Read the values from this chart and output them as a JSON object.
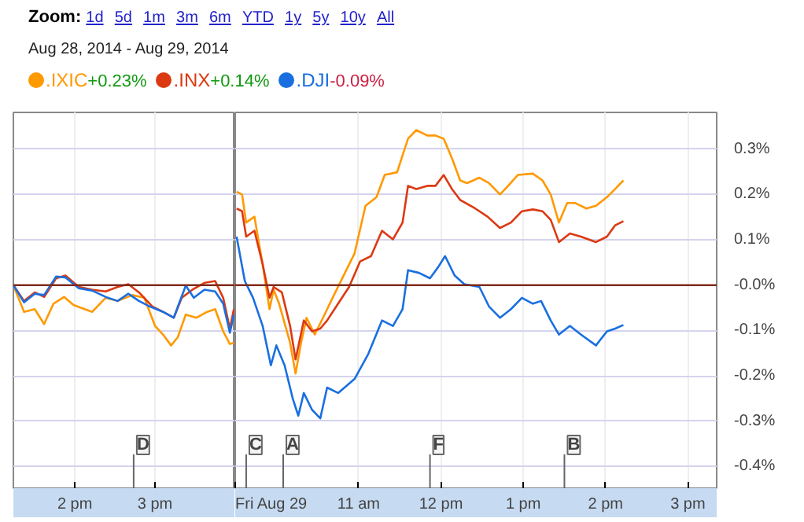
{
  "chart_data": [
    {
      "type": "line",
      "title": "Zoom:",
      "subtitle": "Aug 28, 2014  -  Aug 29, 2014",
      "annotations": [
        "1d",
        "5d",
        "1m",
        "3m",
        "6m",
        "YTD",
        "1y",
        "5y",
        "10y",
        "All",
        "+0.23%",
        "+0.14%",
        "-0.09%"
      ],
      "legend": "top",
      "grid": true,
      "tick_labels": "x",
      "xlim": [
        "2014-08-28T13:14",
        "2014-08-28T16:00"
      ],
      "ylim": [
        -0.448,
        0.381
      ],
      "xticks": [
        {
          "value": "2014-08-28T14:00",
          "label": "2 pm"
        },
        {
          "value": "2014-08-28T15:00",
          "label": "3 pm"
        }
      ],
      "yticks": [
        {
          "value": 0.3,
          "label": null
        },
        {
          "value": 0.2,
          "label": null
        },
        {
          "value": 0.1,
          "label": null
        },
        {
          "value": 0,
          "label": null
        },
        {
          "value": -0.1,
          "label": null
        },
        {
          "value": -0.2,
          "label": null
        },
        {
          "value": -0.3,
          "label": null
        },
        {
          "value": -0.4,
          "label": null
        }
      ],
      "ref_lines": [
        {
          "axis": "y",
          "value": 0,
          "label": null,
          "color": "#7f2a1a"
        },
        {
          "axis": "x",
          "value": "2014-08-28T14:44",
          "label": "D",
          "color": "#666666"
        }
      ],
      "series": [
        {
          "name": ".IXIC",
          "color": "#ff9900",
          "x": [
            "2014-08-28T13:14",
            "2014-08-28T13:22",
            "2014-08-28T13:30",
            "2014-08-28T13:37",
            "2014-08-28T13:44",
            "2014-08-28T13:52",
            "2014-08-28T13:59",
            "2014-08-28T14:13",
            "2014-08-28T14:23",
            "2014-08-28T14:32",
            "2014-08-28T14:43",
            "2014-08-28T14:52",
            "2014-08-28T15:00",
            "2014-08-28T15:06",
            "2014-08-28T15:12",
            "2014-08-28T15:17",
            "2014-08-28T15:23",
            "2014-08-28T15:31",
            "2014-08-28T15:39",
            "2014-08-28T15:45",
            "2014-08-28T15:51",
            "2014-08-28T15:56",
            "2014-08-28T15:59"
          ],
          "values": [
            0.0,
            -0.059,
            -0.053,
            -0.086,
            -0.041,
            -0.026,
            -0.044,
            -0.059,
            -0.028,
            -0.035,
            -0.022,
            -0.028,
            -0.09,
            -0.109,
            -0.133,
            -0.115,
            -0.065,
            -0.072,
            -0.059,
            -0.053,
            -0.102,
            -0.13,
            -0.127
          ]
        },
        {
          "name": ".INX",
          "color": "#dc3912",
          "x": [
            "2014-08-28T13:14",
            "2014-08-28T13:22",
            "2014-08-28T13:30",
            "2014-08-28T13:37",
            "2014-08-28T13:46",
            "2014-08-28T13:53",
            "2014-08-28T14:03",
            "2014-08-28T14:13",
            "2014-08-28T14:23",
            "2014-08-28T14:32",
            "2014-08-28T14:40",
            "2014-08-28T14:48",
            "2014-08-28T14:58",
            "2014-08-28T15:06",
            "2014-08-28T15:14",
            "2014-08-28T15:20",
            "2014-08-28T15:28",
            "2014-08-28T15:37",
            "2014-08-28T15:45",
            "2014-08-28T15:51",
            "2014-08-28T15:56",
            "2014-08-28T15:59"
          ],
          "values": [
            0.0,
            -0.035,
            -0.016,
            -0.026,
            0.015,
            0.021,
            -0.004,
            -0.01,
            -0.014,
            -0.004,
            0.002,
            -0.016,
            -0.047,
            -0.059,
            -0.072,
            -0.028,
            -0.01,
            0.005,
            0.009,
            -0.028,
            -0.096,
            -0.053
          ]
        },
        {
          "name": ".DJI",
          "color": "#1a6fe0",
          "x": [
            "2014-08-28T13:14",
            "2014-08-28T13:22",
            "2014-08-28T13:30",
            "2014-08-28T13:37",
            "2014-08-28T13:46",
            "2014-08-28T13:53",
            "2014-08-28T14:03",
            "2014-08-28T14:13",
            "2014-08-28T14:23",
            "2014-08-28T14:32",
            "2014-08-28T14:40",
            "2014-08-28T14:48",
            "2014-08-28T14:56",
            "2014-08-28T15:06",
            "2014-08-28T15:14",
            "2014-08-28T15:23",
            "2014-08-28T15:29",
            "2014-08-28T15:37",
            "2014-08-28T15:45",
            "2014-08-28T15:51",
            "2014-08-28T15:56",
            "2014-08-28T15:59"
          ],
          "values": [
            0.0,
            -0.038,
            -0.019,
            -0.022,
            0.019,
            0.017,
            -0.007,
            -0.012,
            -0.026,
            -0.035,
            -0.019,
            -0.035,
            -0.047,
            -0.059,
            -0.072,
            -0.001,
            -0.028,
            -0.01,
            -0.014,
            -0.041,
            -0.105,
            -0.065
          ]
        }
      ]
    },
    {
      "type": "line",
      "grid": true,
      "xlim": [
        "2014-08-29T09:30",
        "2014-08-29T15:21"
      ],
      "ylim": [
        -0.448,
        0.381
      ],
      "xticks": [
        {
          "value": "2014-08-29T09:30",
          "label": "Fri Aug 29"
        },
        {
          "value": "2014-08-29T11:00",
          "label": "11 am"
        },
        {
          "value": "2014-08-29T12:00",
          "label": "12 pm"
        },
        {
          "value": "2014-08-29T13:00",
          "label": "1 pm"
        },
        {
          "value": "2014-08-29T14:00",
          "label": "2 pm"
        },
        {
          "value": "2014-08-29T15:00",
          "label": "3 pm"
        }
      ],
      "yticks": [
        {
          "value": 0.3,
          "label": "0.3%"
        },
        {
          "value": 0.2,
          "label": "0.2%"
        },
        {
          "value": 0.1,
          "label": "0.1%"
        },
        {
          "value": 0,
          "label": "-0.0%"
        },
        {
          "value": -0.1,
          "label": "-0.1%"
        },
        {
          "value": -0.2,
          "label": "-0.2%"
        },
        {
          "value": -0.3,
          "label": "-0.3%"
        },
        {
          "value": -0.4,
          "label": "-0.4%"
        }
      ],
      "ref_lines": [
        {
          "axis": "y",
          "value": 0,
          "label": null,
          "color": "#7f2a1a"
        },
        {
          "axis": "x",
          "value": "2014-08-29T09:38",
          "label": "C",
          "color": "#666666"
        },
        {
          "axis": "x",
          "value": "2014-08-29T10:05",
          "label": "A",
          "color": "#666666"
        },
        {
          "axis": "x",
          "value": "2014-08-29T11:52",
          "label": "F",
          "color": "#666666"
        },
        {
          "axis": "x",
          "value": "2014-08-29T13:30",
          "label": "B",
          "color": "#666666"
        }
      ],
      "series": [
        {
          "color": "#ff9900",
          "x": [
            "2014-08-29T09:31",
            "2014-08-29T09:35",
            "2014-08-29T09:38",
            "2014-08-29T09:44",
            "2014-08-29T09:50",
            "2014-08-29T09:55",
            "2014-08-29T09:58",
            "2014-08-29T10:02",
            "2014-08-29T10:10",
            "2014-08-29T10:14",
            "2014-08-29T10:18",
            "2014-08-29T10:22",
            "2014-08-29T10:28",
            "2014-08-29T10:34",
            "2014-08-29T10:41",
            "2014-08-29T10:49",
            "2014-08-29T10:57",
            "2014-08-29T11:05",
            "2014-08-29T11:13",
            "2014-08-29T11:19",
            "2014-08-29T11:28",
            "2014-08-29T11:36",
            "2014-08-29T11:42",
            "2014-08-29T11:50",
            "2014-08-29T11:56",
            "2014-08-29T12:02",
            "2014-08-29T12:08",
            "2014-08-29T12:14",
            "2014-08-29T12:19",
            "2014-08-29T12:28",
            "2014-08-29T12:35",
            "2014-08-29T12:43",
            "2014-08-29T12:49",
            "2014-08-29T12:56",
            "2014-08-29T13:07",
            "2014-08-29T13:14",
            "2014-08-29T13:20",
            "2014-08-29T13:26",
            "2014-08-29T13:32",
            "2014-08-29T13:38",
            "2014-08-29T13:46",
            "2014-08-29T13:53",
            "2014-08-29T14:01",
            "2014-08-29T14:07",
            "2014-08-29T14:13"
          ],
          "values": [
            0.206,
            0.2,
            0.138,
            0.151,
            0.046,
            -0.053,
            -0.01,
            -0.041,
            -0.127,
            -0.195,
            -0.127,
            -0.072,
            -0.109,
            -0.072,
            -0.028,
            0.021,
            0.07,
            0.175,
            0.194,
            0.243,
            0.249,
            0.323,
            0.342,
            0.33,
            0.33,
            0.323,
            0.28,
            0.231,
            0.225,
            0.237,
            0.225,
            0.2,
            0.219,
            0.243,
            0.246,
            0.231,
            0.2,
            0.138,
            0.181,
            0.181,
            0.169,
            0.175,
            0.194,
            0.212,
            0.231
          ]
        },
        {
          "color": "#dc3912",
          "x": [
            "2014-08-29T09:31",
            "2014-08-29T09:35",
            "2014-08-29T09:38",
            "2014-08-29T09:44",
            "2014-08-29T09:50",
            "2014-08-29T09:55",
            "2014-08-29T09:58",
            "2014-08-29T10:04",
            "2014-08-29T10:10",
            "2014-08-29T10:14",
            "2014-08-29T10:20",
            "2014-08-29T10:26",
            "2014-08-29T10:32",
            "2014-08-29T10:37",
            "2014-08-29T10:45",
            "2014-08-29T10:53",
            "2014-08-29T11:01",
            "2014-08-29T11:09",
            "2014-08-29T11:17",
            "2014-08-29T11:25",
            "2014-08-29T11:32",
            "2014-08-29T11:36",
            "2014-08-29T11:42",
            "2014-08-29T11:50",
            "2014-08-29T11:56",
            "2014-08-29T12:02",
            "2014-08-29T12:08",
            "2014-08-29T12:14",
            "2014-08-29T12:25",
            "2014-08-29T12:34",
            "2014-08-29T12:43",
            "2014-08-29T12:51",
            "2014-08-29T12:59",
            "2014-08-29T13:07",
            "2014-08-29T13:14",
            "2014-08-29T13:20",
            "2014-08-29T13:26",
            "2014-08-29T13:34",
            "2014-08-29T13:42",
            "2014-08-29T13:53",
            "2014-08-29T14:01",
            "2014-08-29T14:07",
            "2014-08-29T14:13"
          ],
          "values": [
            0.169,
            0.163,
            0.107,
            0.12,
            0.046,
            -0.028,
            -0.004,
            -0.016,
            -0.09,
            -0.164,
            -0.078,
            -0.102,
            -0.096,
            -0.078,
            -0.041,
            -0.004,
            0.052,
            0.064,
            0.12,
            0.101,
            0.138,
            0.219,
            0.212,
            0.219,
            0.219,
            0.243,
            0.212,
            0.188,
            0.169,
            0.151,
            0.126,
            0.138,
            0.163,
            0.167,
            0.163,
            0.144,
            0.095,
            0.114,
            0.107,
            0.095,
            0.107,
            0.132,
            0.141
          ]
        },
        {
          "color": "#1a6fe0",
          "x": [
            "2014-08-29T09:31",
            "2014-08-29T09:37",
            "2014-08-29T09:43",
            "2014-08-29T09:50",
            "2014-08-29T09:56",
            "2014-08-29T10:00",
            "2014-08-29T10:06",
            "2014-08-29T10:12",
            "2014-08-29T10:16",
            "2014-08-29T10:20",
            "2014-08-29T10:26",
            "2014-08-29T10:32",
            "2014-08-29T10:37",
            "2014-08-29T10:45",
            "2014-08-29T10:57",
            "2014-08-29T11:07",
            "2014-08-29T11:17",
            "2014-08-29T11:25",
            "2014-08-29T11:32",
            "2014-08-29T11:36",
            "2014-08-29T11:44",
            "2014-08-29T11:52",
            "2014-08-29T11:58",
            "2014-08-29T12:03",
            "2014-08-29T12:10",
            "2014-08-29T12:17",
            "2014-08-29T12:28",
            "2014-08-29T12:35",
            "2014-08-29T12:43",
            "2014-08-29T12:51",
            "2014-08-29T12:59",
            "2014-08-29T13:07",
            "2014-08-29T13:13",
            "2014-08-29T13:20",
            "2014-08-29T13:26",
            "2014-08-29T13:34",
            "2014-08-29T13:42",
            "2014-08-29T13:53",
            "2014-08-29T14:01",
            "2014-08-29T14:07",
            "2014-08-29T14:13"
          ],
          "values": [
            0.107,
            0.009,
            -0.028,
            -0.09,
            -0.177,
            -0.133,
            -0.177,
            -0.251,
            -0.288,
            -0.238,
            -0.275,
            -0.294,
            -0.226,
            -0.238,
            -0.207,
            -0.152,
            -0.078,
            -0.09,
            -0.053,
            0.033,
            0.027,
            0.015,
            0.04,
            0.064,
            0.021,
            0.002,
            -0.004,
            -0.047,
            -0.072,
            -0.053,
            -0.028,
            -0.041,
            -0.035,
            -0.078,
            -0.109,
            -0.09,
            -0.109,
            -0.133,
            -0.102,
            -0.096,
            -0.088
          ]
        }
      ]
    }
  ]
}
